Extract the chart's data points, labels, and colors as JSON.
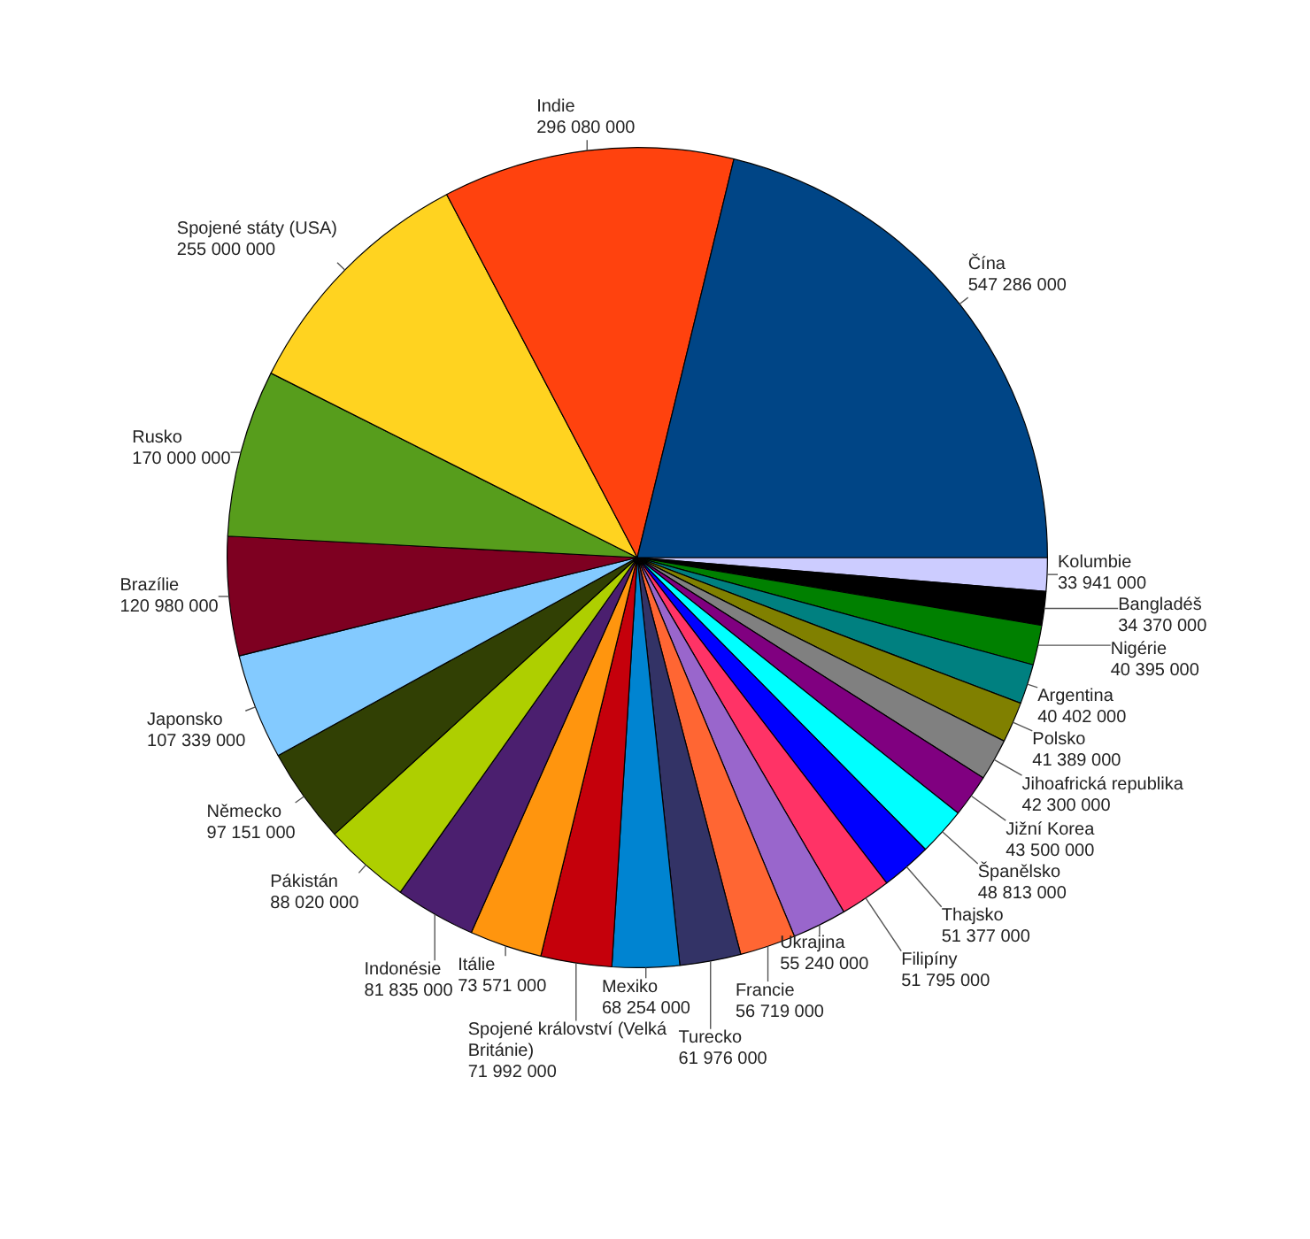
{
  "chart_data": {
    "type": "pie",
    "categories": [
      "Kolumbie",
      "Bangladéš",
      "Nigérie",
      "Argentina",
      "Polsko",
      "Jihoafrická republika",
      "Jižní Korea",
      "Španělsko",
      "Thajsko",
      "Filipíny",
      "Ukrajina",
      "Francie",
      "Turecko",
      "Mexiko",
      "Spojené království (Velká Británie)",
      "Itálie",
      "Indonésie",
      "Pákistán",
      "Německo",
      "Japonsko",
      "Brazílie",
      "Rusko",
      "Spojené státy (USA)",
      "Indie",
      "Čína"
    ],
    "values": [
      33941000,
      34370000,
      40395000,
      40402000,
      41389000,
      42300000,
      43500000,
      48813000,
      51377000,
      51795000,
      55240000,
      56719000,
      61976000,
      68254000,
      71992000,
      73571000,
      81835000,
      88020000,
      97151000,
      107339000,
      120980000,
      170000000,
      255000000,
      296080000,
      547286000
    ],
    "value_labels": [
      "33 941 000",
      "34 370 000",
      "40 395 000",
      "40 402 000",
      "41 389 000",
      "42 300 000",
      "43 500 000",
      "48 813 000",
      "51 377 000",
      "51 795 000",
      "55 240 000",
      "56 719 000",
      "61 976 000",
      "68 254 000",
      "71 992 000",
      "73 571 000",
      "81 835 000",
      "88 020 000",
      "97 151 000",
      "107 339 000",
      "120 980 000",
      "170 000 000",
      "255 000 000",
      "296 080 000",
      "547 286 000"
    ],
    "colors": [
      "#ccccff",
      "#000000",
      "#008000",
      "#008080",
      "#808000",
      "#808080",
      "#800080",
      "#00ffff",
      "#0000ff",
      "#ff3366",
      "#9966cc",
      "#ff6633",
      "#333366",
      "#0084d1",
      "#c5000b",
      "#ff950e",
      "#4b1f6f",
      "#aecf00",
      "#314004",
      "#83caff",
      "#7e0021",
      "#579d1c",
      "#ffd320",
      "#ff420e",
      "#004586"
    ],
    "legend": false
  }
}
